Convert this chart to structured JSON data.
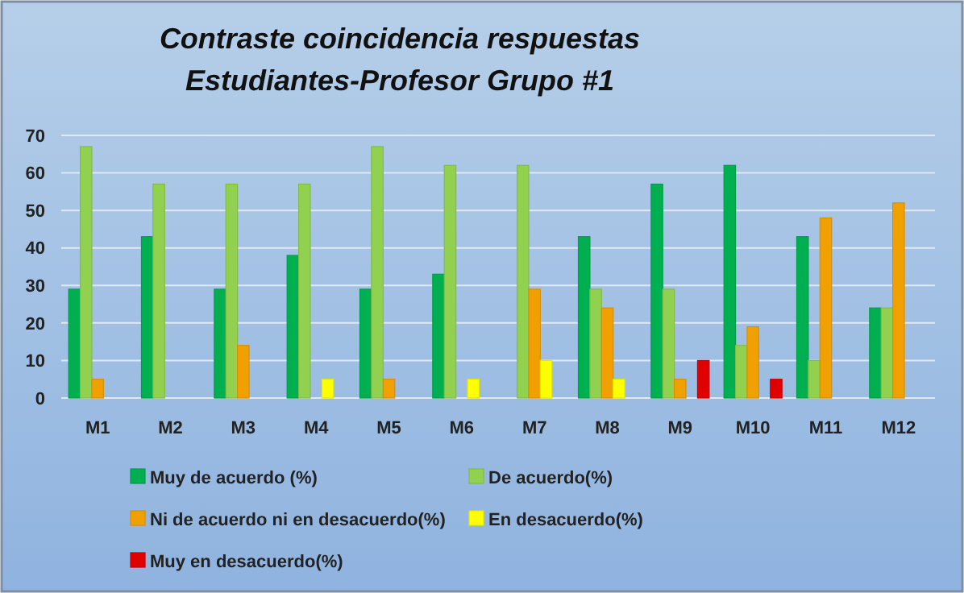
{
  "chart_data": {
    "type": "bar",
    "title": "Contraste coincidencia respuestas\nEstudiantes-Profesor  Grupo #1",
    "categories": [
      "M1",
      "M2",
      "M3",
      "M4",
      "M5",
      "M6",
      "M7",
      "M8",
      "M9",
      "M10",
      "M11",
      "M12"
    ],
    "series": [
      {
        "name": "Muy de acuerdo (%)",
        "color": "#00b050",
        "values": [
          29,
          43,
          29,
          38,
          29,
          33,
          null,
          43,
          57,
          62,
          43,
          24
        ]
      },
      {
        "name": "De acuerdo(%)",
        "color": "#92d050",
        "values": [
          67,
          57,
          57,
          57,
          67,
          62,
          62,
          29,
          29,
          14,
          10,
          24
        ]
      },
      {
        "name": "Ni de acuerdo ni en desacuerdo(%)",
        "color": "#f0a000",
        "values": [
          5,
          null,
          14,
          null,
          5,
          null,
          29,
          24,
          5,
          19,
          48,
          52
        ]
      },
      {
        "name": "En desacuerdo(%)",
        "color": "#ffff00",
        "values": [
          null,
          null,
          null,
          5,
          null,
          5,
          10,
          5,
          null,
          null,
          null,
          null
        ]
      },
      {
        "name": "Muy en desacuerdo(%)",
        "color": "#e00000",
        "values": [
          null,
          null,
          null,
          null,
          null,
          null,
          null,
          null,
          10,
          5,
          null,
          null
        ]
      }
    ],
    "ylim": [
      0,
      70
    ],
    "yticks": [
      0,
      10,
      20,
      30,
      40,
      50,
      60,
      70
    ],
    "grid": "y",
    "legend": "bottom"
  }
}
